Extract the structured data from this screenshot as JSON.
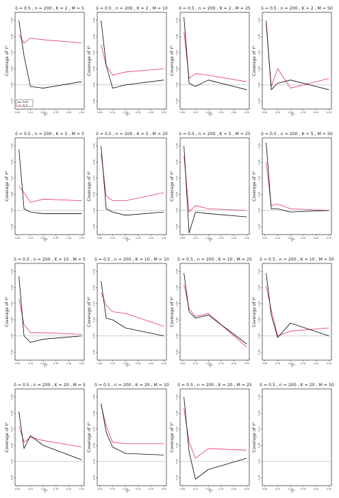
{
  "chart_data": {
    "type": "line",
    "ylabel": "Coverage of τ²",
    "xlabel": "τ²",
    "x": [
      0.01,
      0.05,
      0.1,
      0.2,
      0.5
    ],
    "x_tick_labels": [
      "0.00",
      "0.10",
      "0.20",
      "0.30",
      "0.40",
      "0.50"
    ],
    "y_tick_labels": [
      "0.94",
      "0.95",
      "0.96",
      "0.97",
      "0.98",
      "0.99"
    ],
    "ylim": [
      0.935,
      0.995
    ],
    "reference_line": 0.95,
    "legend": {
      "position": "bottom-left",
      "entries": [
        "REML",
        "SJ_R"
      ]
    },
    "series_colors": {
      "REML": "#000000",
      "SJ_R": "#e8335a"
    },
    "reference_color": "#bdbdbd",
    "panels": [
      {
        "title": "δ = 0.5 , n = 200 , K = 2 , M = 5",
        "series": [
          {
            "name": "REML",
            "values": [
              0.99,
              0.968,
              0.949,
              0.948,
              0.952
            ]
          },
          {
            "name": "SJ_R",
            "values": [
              0.981,
              0.976,
              0.979,
              0.978,
              0.976
            ]
          }
        ]
      },
      {
        "title": "δ = 0.5 , n = 200 , K = 2 , M = 10",
        "series": [
          {
            "name": "REML",
            "values": [
              0.99,
              0.962,
              0.948,
              0.95,
              0.953
            ]
          },
          {
            "name": "SJ_R",
            "values": [
              0.975,
              0.962,
              0.956,
              0.958,
              0.96
            ]
          }
        ]
      },
      {
        "title": "δ = 0.5 , n = 200 , K = 2 , M = 25",
        "series": [
          {
            "name": "REML",
            "values": [
              0.992,
              0.951,
              0.949,
              0.953,
              0.947
            ]
          },
          {
            "name": "SJ_R",
            "values": [
              0.983,
              0.954,
              0.957,
              0.956,
              0.952
            ]
          }
        ]
      },
      {
        "title": "δ = 0.5 , n = 200 , K = 2 , M = 50",
        "series": [
          {
            "name": "REML",
            "values": [
              0.99,
              0.947,
              0.951,
              0.953,
              0.947
            ]
          },
          {
            "name": "SJ_R",
            "values": [
              0.988,
              0.949,
              0.96,
              0.948,
              0.954
            ]
          }
        ]
      },
      {
        "title": "δ = 0.5 , n = 200 , K = 5 , M = 5",
        "series": [
          {
            "name": "REML",
            "values": [
              0.988,
              0.951,
              0.949,
              0.948,
              0.948
            ]
          },
          {
            "name": "SJ_R",
            "values": [
              0.965,
              0.961,
              0.955,
              0.957,
              0.956
            ]
          }
        ]
      },
      {
        "title": "δ = 0.5 , n = 200 , K = 5 , M = 10",
        "series": [
          {
            "name": "REML",
            "values": [
              0.99,
              0.951,
              0.949,
              0.947,
              0.949
            ]
          },
          {
            "name": "SJ_R",
            "values": [
              0.985,
              0.959,
              0.956,
              0.956,
              0.961
            ]
          }
        ]
      },
      {
        "title": "δ = 0.5 , n = 200 , K = 5 , M = 25",
        "series": [
          {
            "name": "REML",
            "values": [
              0.99,
              0.936,
              0.949,
              0.948,
              0.946
            ]
          },
          {
            "name": "SJ_R",
            "values": [
              0.984,
              0.949,
              0.953,
              0.951,
              0.95
            ]
          }
        ]
      },
      {
        "title": "δ = 0.5 , n = 200 , K = 5 , M = 50",
        "series": [
          {
            "name": "REML",
            "values": [
              0.992,
              0.951,
              0.951,
              0.949,
              0.95
            ]
          },
          {
            "name": "SJ_R",
            "values": [
              0.98,
              0.953,
              0.954,
              0.951,
              0.95
            ]
          }
        ]
      },
      {
        "title": "δ = 0.5 , n = 200 , K = 10 , M = 5",
        "series": [
          {
            "name": "REML",
            "values": [
              0.987,
              0.95,
              0.946,
              0.948,
              0.95
            ]
          },
          {
            "name": "SJ_R",
            "values": [
              0.973,
              0.957,
              0.952,
              0.952,
              0.951
            ]
          }
        ]
      },
      {
        "title": "δ = 0.5 , n = 200 , K = 10 , M = 10",
        "series": [
          {
            "name": "REML",
            "values": [
              0.984,
              0.961,
              0.96,
              0.955,
              0.95
            ]
          },
          {
            "name": "SJ_R",
            "values": [
              0.977,
              0.969,
              0.965,
              0.964,
              0.956
            ]
          }
        ]
      },
      {
        "title": "δ = 0.5 , n = 200 , K = 10 , M = 25",
        "series": [
          {
            "name": "REML",
            "values": [
              0.989,
              0.965,
              0.961,
              0.963,
              0.945
            ]
          },
          {
            "name": "SJ_R",
            "values": [
              0.982,
              0.967,
              0.962,
              0.964,
              0.943
            ]
          }
        ]
      },
      {
        "title": "δ = 0.5 , n = 200 , K = 10 , M = 50",
        "series": [
          {
            "name": "REML",
            "values": [
              0.989,
              0.963,
              0.949,
              0.958,
              0.95
            ]
          },
          {
            "name": "SJ_R",
            "values": [
              0.981,
              0.966,
              0.95,
              0.953,
              0.955
            ]
          }
        ]
      },
      {
        "title": "δ = 0.5 , n = 200 , K = 20 , M = 5",
        "series": [
          {
            "name": "REML",
            "values": [
              0.981,
              0.958,
              0.966,
              0.96,
              0.951
            ]
          },
          {
            "name": "SJ_R",
            "values": [
              0.972,
              0.962,
              0.965,
              0.963,
              0.959
            ]
          }
        ]
      },
      {
        "title": "δ = 0.5 , n = 200 , K = 20 , M = 10",
        "series": [
          {
            "name": "REML",
            "values": [
              0.986,
              0.968,
              0.959,
              0.955,
              0.954
            ]
          },
          {
            "name": "SJ_R",
            "values": [
              0.985,
              0.972,
              0.962,
              0.961,
              0.961
            ]
          }
        ]
      },
      {
        "title": "δ = 0.5 , n = 200 , K = 20 , M = 25",
        "series": [
          {
            "name": "REML",
            "values": [
              0.99,
              0.956,
              0.939,
              0.945,
              0.952
            ]
          },
          {
            "name": "SJ_R",
            "values": [
              0.983,
              0.962,
              0.952,
              0.958,
              0.957
            ]
          }
        ]
      },
      {
        "title": "δ = 0.5 , n = 200 , K = 20 , M = 50",
        "series": []
      }
    ]
  }
}
